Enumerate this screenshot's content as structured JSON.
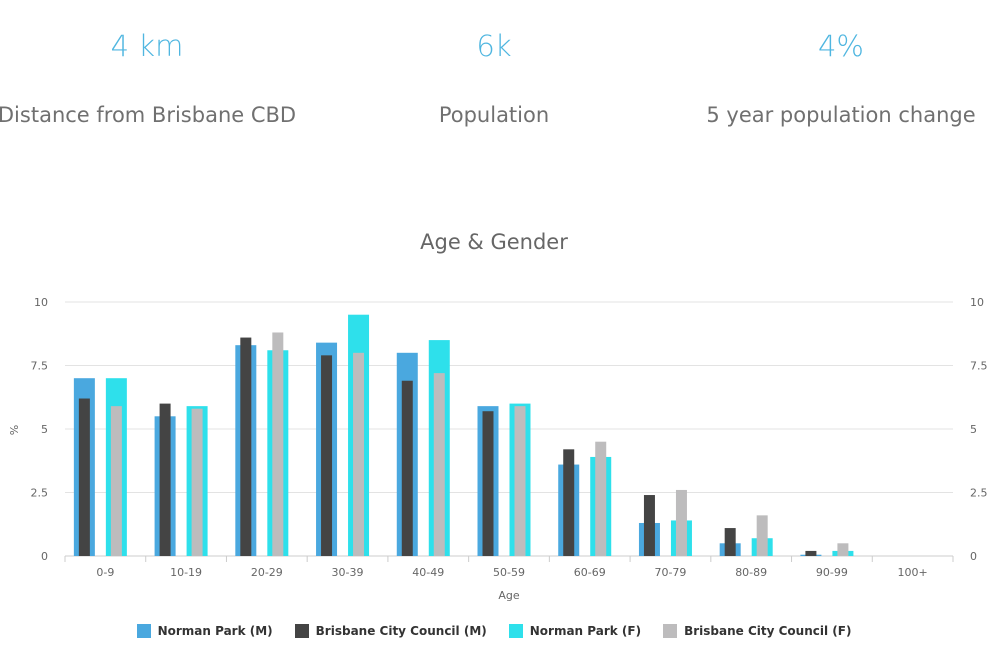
{
  "stats": [
    {
      "value": "4 km",
      "label": "Distance from Brisbane CBD"
    },
    {
      "value": "6k",
      "label": "Population"
    },
    {
      "value": "4%",
      "label": "5 year population change"
    }
  ],
  "colors": {
    "accent": "#4fb6e0",
    "norman_m": "#4aa8df",
    "bcc_m": "#444444",
    "norman_f": "#2ee0eb",
    "bcc_f": "#bdbcbd",
    "grid": "#e3e3e3"
  },
  "chart_data": {
    "type": "bar",
    "title": "Age & Gender",
    "xlabel": "Age",
    "ylabel": "%",
    "ylim": [
      0,
      10
    ],
    "yticks": [
      "0",
      "2.5",
      "5",
      "7.5",
      "10"
    ],
    "categories": [
      "0-9",
      "10-19",
      "20-29",
      "30-39",
      "40-49",
      "50-59",
      "60-69",
      "70-79",
      "80-89",
      "90-99",
      "100+"
    ],
    "series": [
      {
        "name": "Norman Park (M)",
        "color": "#4aa8df",
        "values": [
          7.0,
          5.5,
          8.3,
          8.4,
          8.0,
          5.9,
          3.6,
          1.3,
          0.5,
          0.05,
          0
        ]
      },
      {
        "name": "Brisbane City Council (M)",
        "color": "#444444",
        "values": [
          6.2,
          6.0,
          8.6,
          7.9,
          6.9,
          5.7,
          4.2,
          2.4,
          1.1,
          0.2,
          0
        ]
      },
      {
        "name": "Norman Park (F)",
        "color": "#2ee0eb",
        "values": [
          7.0,
          5.9,
          8.1,
          9.5,
          8.5,
          6.0,
          3.9,
          1.4,
          0.7,
          0.2,
          0
        ]
      },
      {
        "name": "Brisbane City Council (F)",
        "color": "#bdbcbd",
        "values": [
          5.9,
          5.8,
          8.8,
          8.0,
          7.2,
          5.9,
          4.5,
          2.6,
          1.6,
          0.5,
          0
        ]
      }
    ],
    "legend_position": "bottom-center"
  }
}
